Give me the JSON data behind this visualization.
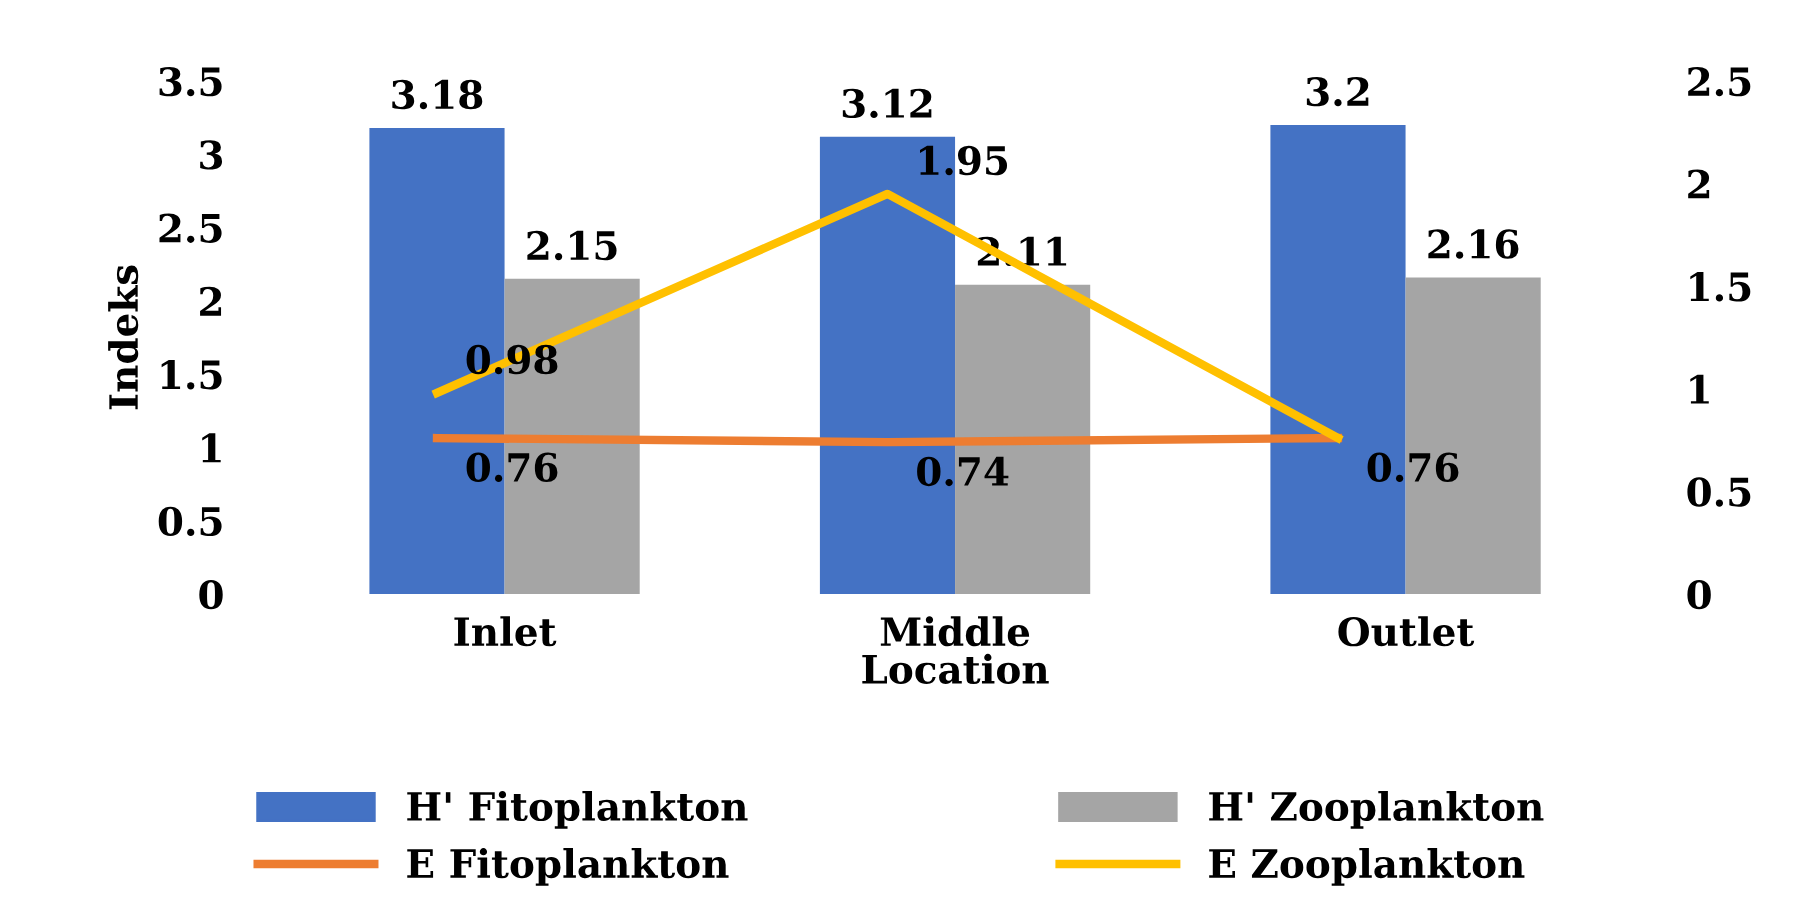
{
  "chart_data": {
    "type": "bar",
    "xlabel": "Location",
    "ylabel": "Indeks",
    "categories": [
      "Inlet",
      "Middle",
      "Outlet"
    ],
    "series": [
      {
        "name": "H' Fitoplankton",
        "color": "#4472c4",
        "values": [
          3.18,
          3.12,
          3.2
        ]
      },
      {
        "name": "H' Zooplankton",
        "color": "#a5a5a5",
        "values": [
          2.15,
          2.11,
          2.16
        ]
      },
      {
        "name": "E Fitoplankton",
        "type": "line",
        "axis": "y2",
        "color": "#ed7d31",
        "values": [
          0.76,
          0.74,
          0.76
        ]
      },
      {
        "name": "E Zooplankton",
        "type": "line",
        "axis": "y2",
        "color": "#ffc000",
        "values": [
          0.98,
          1.95,
          0.76
        ],
        "value_labels": [
          "0.98",
          "1.95",
          null
        ]
      }
    ],
    "ylim": [
      0,
      3.5
    ],
    "yticks": [
      0,
      0.5,
      1,
      1.5,
      2,
      2.5,
      3,
      3.5
    ],
    "y2lim": [
      0,
      2.5
    ],
    "y2ticks": [
      0,
      0.5,
      1,
      1.5,
      2,
      2.5
    ],
    "data_labels": true,
    "grid": false,
    "legend": "bottom"
  }
}
